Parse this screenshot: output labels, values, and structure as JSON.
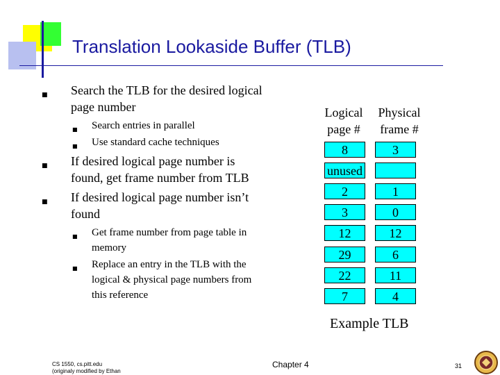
{
  "slide": {
    "title": "Translation Lookaside Buffer (TLB)"
  },
  "bullets": [
    {
      "text": "Search the TLB for the desired logical page number",
      "sub": [
        "Search entries in parallel",
        "Use standard cache techniques"
      ]
    },
    {
      "text": "If desired logical page number is found, get frame number from TLB",
      "sub": []
    },
    {
      "text": "If desired logical page number isn’t found",
      "sub": [
        "Get frame number from page table in memory",
        "Replace an entry in the TLB with the logical & physical page numbers from this reference"
      ]
    }
  ],
  "tlb": {
    "col_logical": "Logical page #",
    "col_physical": "Physical frame #",
    "rows": [
      {
        "logical": "8",
        "physical": "3"
      },
      {
        "logical": "unused",
        "physical": ""
      },
      {
        "logical": "2",
        "physical": "1"
      },
      {
        "logical": "3",
        "physical": "0"
      },
      {
        "logical": "12",
        "physical": "12"
      },
      {
        "logical": "29",
        "physical": "6"
      },
      {
        "logical": "22",
        "physical": "11"
      },
      {
        "logical": "7",
        "physical": "4"
      }
    ],
    "caption": "Example TLB"
  },
  "footer": {
    "course": "CS 1550, cs.pitt.edu",
    "credit": "(originaly modified by Ethan",
    "chapter": "Chapter 4",
    "page": "31"
  },
  "colors": {
    "title": "#1a1aa0",
    "cell_fill": "#00ffff"
  }
}
